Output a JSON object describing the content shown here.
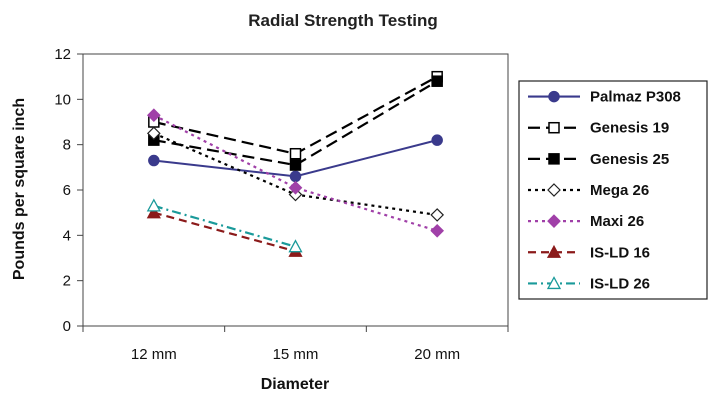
{
  "chart_data": {
    "type": "line",
    "title": "Radial Strength Testing",
    "xlabel": "Diameter",
    "ylabel": "Pounds per square inch",
    "categories": [
      "12 mm",
      "15 mm",
      "20 mm"
    ],
    "ylim": [
      0,
      12
    ],
    "yticks": [
      "0",
      "2",
      "4",
      "6",
      "8",
      "10",
      "12"
    ],
    "grid": false,
    "legend_position": "right",
    "series": [
      {
        "name": "Palmaz P308",
        "values": [
          7.3,
          6.6,
          8.2
        ],
        "color": "#3a3a8c",
        "dash": "solid",
        "marker": "circle",
        "filled": true
      },
      {
        "name": "Genesis 19",
        "values": [
          9.0,
          7.6,
          11.0
        ],
        "color": "#000000",
        "dash": "long",
        "marker": "square",
        "filled": false
      },
      {
        "name": "Genesis 25",
        "values": [
          8.2,
          7.1,
          10.8
        ],
        "color": "#000000",
        "dash": "long",
        "marker": "square",
        "filled": true
      },
      {
        "name": "Mega 26",
        "values": [
          8.5,
          5.8,
          4.9
        ],
        "color": "#000000",
        "dash": "dot",
        "marker": "diamond",
        "filled": false
      },
      {
        "name": "Maxi 26",
        "values": [
          9.3,
          6.1,
          4.2
        ],
        "color": "#a040a8",
        "dash": "dot",
        "marker": "diamond",
        "filled": true
      },
      {
        "name": "IS-LD 16",
        "values": [
          5.0,
          3.3,
          null
        ],
        "color": "#8b1a1a",
        "dash": "dash",
        "marker": "triangle",
        "filled": true
      },
      {
        "name": "IS-LD 26",
        "values": [
          5.3,
          3.5,
          null
        ],
        "color": "#1a9a9a",
        "dash": "dashdot",
        "marker": "triangle",
        "filled": false
      }
    ]
  }
}
